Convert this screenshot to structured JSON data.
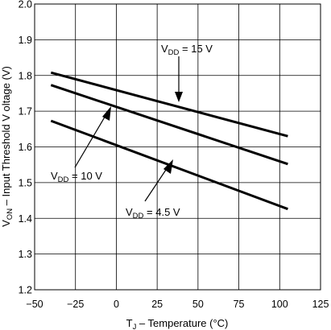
{
  "chart_data": {
    "type": "line",
    "xlabel_main": "T",
    "xlabel_sub": "J",
    "xlabel_rest": " – Temperature (°C)",
    "ylabel_main": "V",
    "ylabel_sub": "ON",
    "ylabel_rest": " – Input Threshold V oltage (V)",
    "xlim": [
      -50,
      125
    ],
    "ylim": [
      1.2,
      2.0
    ],
    "xticks": [
      -50,
      -25,
      0,
      25,
      50,
      75,
      100,
      125
    ],
    "xtick_labels": [
      "−50",
      "−25",
      "0",
      "25",
      "50",
      "75",
      "100",
      "125"
    ],
    "yticks": [
      1.2,
      1.3,
      1.4,
      1.5,
      1.6,
      1.7,
      1.8,
      1.9,
      2.0
    ],
    "ytick_labels": [
      "1.2",
      "1.3",
      "1.4",
      "1.5",
      "1.6",
      "1.7",
      "1.8",
      "1.9",
      "2.0"
    ],
    "grid": true,
    "series": [
      {
        "key": "vdd15",
        "x": [
          -40,
          105
        ],
        "y": [
          1.808,
          1.63
        ]
      },
      {
        "key": "vdd10",
        "x": [
          -40,
          105
        ],
        "y": [
          1.773,
          1.552
        ]
      },
      {
        "key": "vdd45",
        "x": [
          -40,
          105
        ],
        "y": [
          1.673,
          1.426
        ]
      }
    ],
    "annotations": [
      {
        "key": "vdd15",
        "main": "V",
        "sub": "DD",
        "rest": " = 15 V"
      },
      {
        "key": "vdd10",
        "main": "V",
        "sub": "DD",
        "rest": " = 10 V"
      },
      {
        "key": "vdd45",
        "main": "V",
        "sub": "DD",
        "rest": " = 4.5 V"
      }
    ]
  }
}
